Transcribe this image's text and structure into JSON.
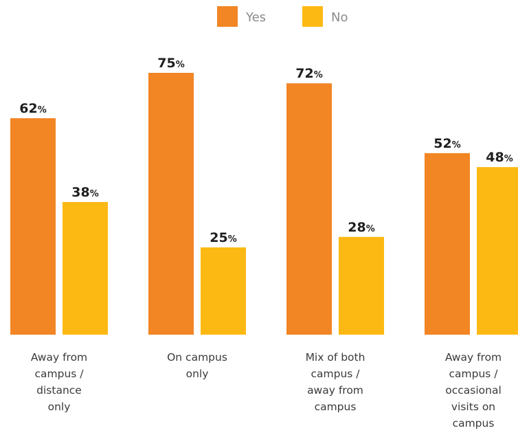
{
  "chart_data": {
    "type": "bar",
    "categories": [
      [
        "Away from",
        "campus /",
        "distance",
        "only"
      ],
      [
        "On campus",
        "only"
      ],
      [
        "Mix of both",
        "campus /",
        "away from",
        "campus"
      ],
      [
        "Away from",
        "campus /",
        "occasional",
        "visits on",
        "campus"
      ]
    ],
    "series": [
      {
        "name": "Yes",
        "color": "#F28524",
        "values": [
          62,
          75,
          72,
          52
        ]
      },
      {
        "name": "No",
        "color": "#FDB913",
        "values": [
          38,
          25,
          28,
          48
        ]
      }
    ],
    "value_suffix": "%",
    "ylim": [
      0,
      100
    ],
    "grid": false,
    "legend": {
      "position": "top-center"
    }
  }
}
